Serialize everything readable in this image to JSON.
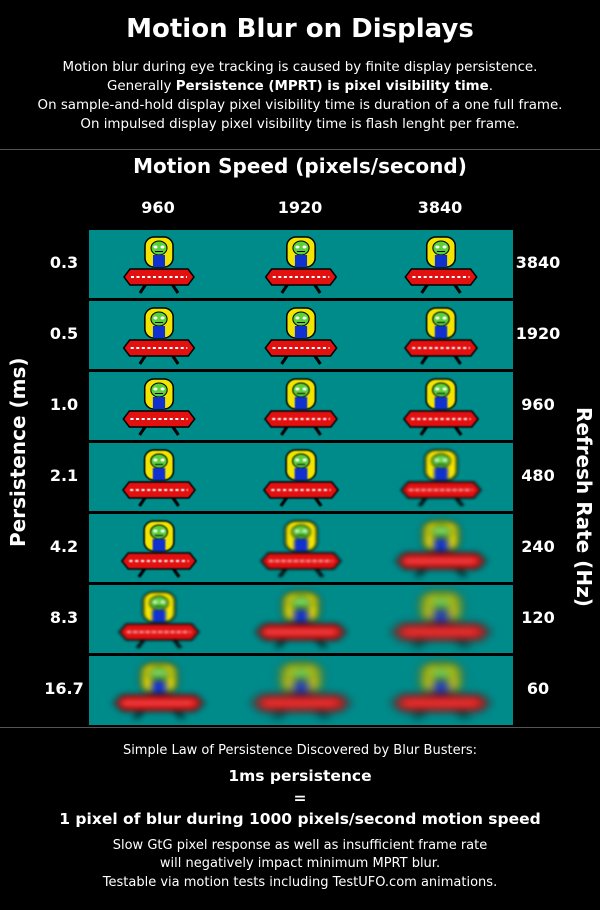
{
  "title": "Motion Blur on Displays",
  "intro": {
    "line1": "Motion blur during eye tracking is caused by finite display persistence.",
    "line2_pre": "Generally ",
    "line2_bold": "Persistence (MPRT) is pixel visibility time",
    "line2_post": ".",
    "line3": "On sample-and-hold display pixel visibility time is duration of a one full frame.",
    "line4": "On impulsed display pixel visibility time is flash lenght per frame."
  },
  "speed_heading": "Motion Speed (pixels/second)",
  "speeds": [
    "960",
    "1920",
    "3840"
  ],
  "left_axis": "Persistence (ms)",
  "right_axis": "Refresh Rate (Hz)",
  "rows": [
    {
      "persistence": "0.3",
      "refresh": "3840"
    },
    {
      "persistence": "0.5",
      "refresh": "1920"
    },
    {
      "persistence": "1.0",
      "refresh": "960"
    },
    {
      "persistence": "2.1",
      "refresh": "480"
    },
    {
      "persistence": "4.2",
      "refresh": "240"
    },
    {
      "persistence": "8.3",
      "refresh": "120"
    },
    {
      "persistence": "16.7",
      "refresh": "60"
    }
  ],
  "footer": {
    "law_intro": "Simple Law of Persistence Discovered by Blur Busters:",
    "law_line1": "1ms persistence",
    "law_eq": "=",
    "law_line2": "1 pixel of blur during 1000 pixels/second motion speed",
    "note1": "Slow GtG pixel response as well as insufficient frame rate",
    "note2": "will negatively impact minimum MPRT blur.",
    "note3": "Testable via motion tests including TestUFO.com animations."
  },
  "colors": {
    "background": "#000000",
    "cell": "#008b8b",
    "ufo_body": "#e31010",
    "ufo_dome": "#f2e600",
    "alien": "#5ad03a",
    "alien_body": "#1030d0"
  }
}
